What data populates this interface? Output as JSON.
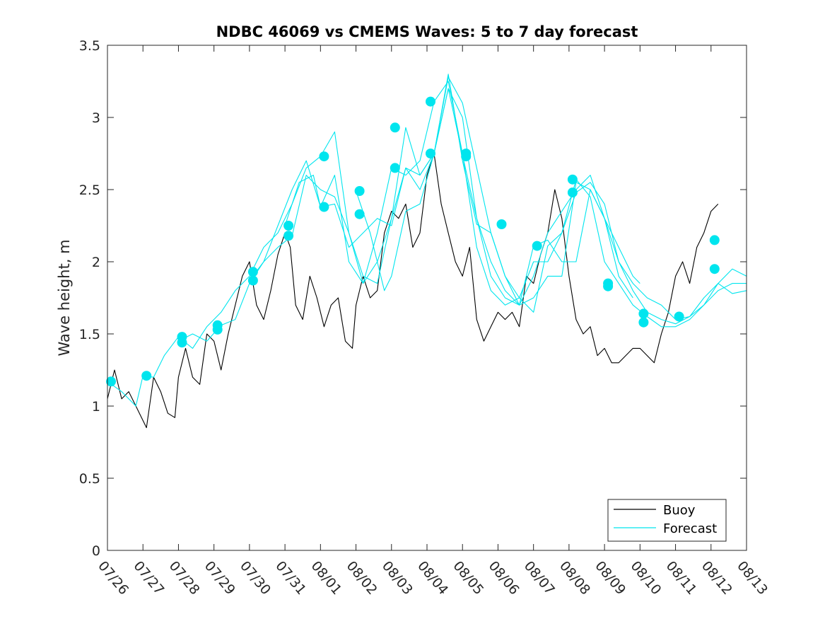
{
  "chart_data": {
    "type": "line",
    "title": "NDBC 46069 vs CMEMS Waves: 5 to 7 day forecast",
    "xlabel": "",
    "ylabel": "Wave height, m",
    "x_ticks": [
      "07/26",
      "07/27",
      "07/28",
      "07/29",
      "07/30",
      "07/31",
      "08/01",
      "08/02",
      "08/03",
      "08/04",
      "08/05",
      "08/06",
      "08/07",
      "08/08",
      "08/09",
      "08/10",
      "08/11",
      "08/12",
      "08/13"
    ],
    "xlim_days": [
      0,
      18
    ],
    "ylim": [
      0,
      3.5
    ],
    "y_ticks": [
      "0",
      "0.5",
      "1",
      "1.5",
      "2",
      "2.5",
      "3",
      "3.5"
    ],
    "grid": false,
    "legend_position": "bottom-right",
    "colors": {
      "buoy": "#000000",
      "forecast": "#00e5ee",
      "axis": "#262626"
    },
    "legend": [
      {
        "label": "Buoy",
        "color": "#000000"
      },
      {
        "label": "Forecast",
        "color": "#00e5ee"
      }
    ],
    "series": [
      {
        "name": "Buoy",
        "x": [
          0,
          0.2,
          0.4,
          0.6,
          0.8,
          1.0,
          1.1,
          1.3,
          1.5,
          1.7,
          1.9,
          2.0,
          2.2,
          2.4,
          2.6,
          2.8,
          3.0,
          3.2,
          3.4,
          3.6,
          3.8,
          4.0,
          4.2,
          4.4,
          4.6,
          4.8,
          5.0,
          5.15,
          5.3,
          5.5,
          5.7,
          5.9,
          6.1,
          6.3,
          6.5,
          6.7,
          6.9,
          7.0,
          7.2,
          7.4,
          7.6,
          7.8,
          8.0,
          8.2,
          8.4,
          8.6,
          8.8,
          9.0,
          9.2,
          9.4,
          9.6,
          9.8,
          10.0,
          10.2,
          10.4,
          10.6,
          10.8,
          11.0,
          11.2,
          11.4,
          11.6,
          11.8,
          12.0,
          12.2,
          12.4,
          12.6,
          12.8,
          13.0,
          13.2,
          13.4,
          13.6,
          13.8,
          14.0,
          14.2,
          14.4,
          14.6,
          14.8,
          15.0,
          15.2,
          15.4,
          15.6,
          15.8,
          16.0,
          16.2,
          16.4,
          16.6,
          16.8,
          17.0,
          17.2
        ],
        "values": [
          1.05,
          1.25,
          1.05,
          1.1,
          1.0,
          0.9,
          0.85,
          1.2,
          1.1,
          0.95,
          0.92,
          1.2,
          1.4,
          1.2,
          1.15,
          1.5,
          1.45,
          1.25,
          1.5,
          1.7,
          1.9,
          2.0,
          1.7,
          1.6,
          1.8,
          2.05,
          2.2,
          2.1,
          1.7,
          1.6,
          1.9,
          1.75,
          1.55,
          1.7,
          1.75,
          1.45,
          1.4,
          1.7,
          1.9,
          1.75,
          1.8,
          2.2,
          2.35,
          2.3,
          2.4,
          2.1,
          2.2,
          2.6,
          2.75,
          2.4,
          2.2,
          2.0,
          1.9,
          2.1,
          1.6,
          1.45,
          1.55,
          1.65,
          1.6,
          1.65,
          1.55,
          1.9,
          1.85,
          2.05,
          2.2,
          2.5,
          2.3,
          1.9,
          1.6,
          1.5,
          1.55,
          1.35,
          1.4,
          1.3,
          1.3,
          1.35,
          1.4,
          1.4,
          1.35,
          1.3,
          1.5,
          1.65,
          1.9,
          2.0,
          1.85,
          2.1,
          2.2,
          2.35,
          2.4
        ]
      },
      {
        "name": "Forecast",
        "x": [
          0,
          0.4,
          0.8,
          1.0,
          1.3,
          1.6,
          2.0,
          2.4,
          2.8,
          3.2,
          3.6,
          4.0,
          4.4,
          4.8,
          5.2,
          5.6,
          6.0,
          6.4,
          6.8,
          7.2,
          7.6,
          8.0,
          8.4,
          8.8,
          9.2,
          9.6,
          10.0,
          10.4,
          10.8,
          11.2,
          11.6,
          12.0,
          12.4,
          12.8,
          13.2,
          13.6,
          14.0,
          14.4,
          14.8,
          15.2,
          15.6,
          16.0,
          16.4,
          16.8,
          17.2,
          17.6,
          18.0
        ],
        "values": [
          1.17,
          1.1,
          1.0,
          1.21,
          1.2,
          1.35,
          1.48,
          1.4,
          1.55,
          1.65,
          1.8,
          1.9,
          2.1,
          2.2,
          2.4,
          2.65,
          2.73,
          2.9,
          2.2,
          1.85,
          2.0,
          2.3,
          2.65,
          2.6,
          2.75,
          3.2,
          3.0,
          2.3,
          1.9,
          1.75,
          1.7,
          1.9,
          2.2,
          2.35,
          2.5,
          2.6,
          2.3,
          2.0,
          1.85,
          1.75,
          1.7,
          1.6,
          1.62,
          1.7,
          1.85,
          1.95,
          1.9
        ]
      },
      {
        "name": "Forecast",
        "x": [
          2.0,
          2.4,
          2.8,
          3.2,
          3.6,
          4.0,
          4.4,
          4.8,
          5.2,
          5.6,
          6.0,
          6.4,
          6.8,
          7.2,
          7.6,
          8.0,
          8.4,
          8.8,
          9.2,
          9.6,
          10.0,
          10.4,
          10.8,
          11.2,
          11.6,
          12.0,
          12.4,
          12.8,
          13.2,
          13.6,
          14.0,
          14.4,
          14.8,
          15.2,
          15.6,
          16.0,
          16.4,
          16.8,
          17.2,
          17.6,
          18.0
        ],
        "values": [
          1.45,
          1.5,
          1.45,
          1.56,
          1.6,
          1.85,
          2.0,
          2.25,
          2.5,
          2.7,
          2.38,
          2.6,
          2.0,
          1.85,
          2.2,
          2.65,
          2.6,
          2.7,
          3.11,
          3.25,
          2.75,
          2.1,
          1.8,
          1.7,
          1.75,
          2.0,
          2.0,
          2.2,
          2.48,
          2.55,
          2.4,
          2.0,
          1.8,
          1.65,
          1.6,
          1.57,
          1.62,
          1.75,
          1.85,
          1.78,
          1.8
        ]
      },
      {
        "name": "Forecast",
        "x": [
          4.0,
          4.4,
          4.8,
          5.2,
          5.6,
          6.0,
          6.4,
          6.8,
          7.2,
          7.6,
          8.0,
          8.4,
          8.8,
          9.2,
          9.6,
          10.0,
          10.4,
          10.8,
          11.2,
          11.6,
          12.0,
          12.4,
          12.8,
          13.2,
          13.6,
          14.0,
          14.4,
          14.8,
          15.2,
          15.6,
          16.0,
          16.4,
          16.8,
          17.2,
          17.6,
          18.0
        ],
        "values": [
          1.87,
          2.0,
          2.1,
          2.18,
          2.6,
          2.5,
          2.45,
          2.2,
          1.9,
          1.85,
          2.3,
          2.93,
          2.6,
          2.75,
          3.28,
          3.1,
          2.65,
          2.2,
          1.9,
          1.75,
          1.65,
          2.11,
          2.2,
          2.57,
          2.45,
          2.0,
          1.85,
          1.7,
          1.62,
          1.55,
          1.55,
          1.6,
          1.7,
          1.8,
          1.85,
          1.85
        ]
      },
      {
        "name": "Forecast",
        "x": [
          5.0,
          5.4,
          5.8,
          6.0,
          6.4,
          6.8,
          7.2,
          7.6,
          8.0,
          8.4,
          8.8,
          9.2,
          9.6,
          10.0,
          10.4,
          10.8,
          11.2,
          11.6,
          12.0,
          12.4,
          12.8,
          13.2,
          13.6,
          14.0,
          14.4,
          14.8,
          15.0
        ],
        "values": [
          2.25,
          2.55,
          2.6,
          2.38,
          2.4,
          2.1,
          2.2,
          2.3,
          2.25,
          2.65,
          2.5,
          2.75,
          3.2,
          2.74,
          2.3,
          2.0,
          1.8,
          1.7,
          1.75,
          1.9,
          1.9,
          2.55,
          2.5,
          2.3,
          2.1,
          1.9,
          1.85
        ]
      },
      {
        "name": "Forecast",
        "x": [
          7.0,
          7.4,
          7.8,
          8.0,
          8.4,
          8.8,
          9.2,
          9.6,
          10.0,
          10.4,
          10.8,
          11.2,
          11.6,
          12.0,
          12.4,
          12.8,
          13.2,
          13.6,
          14.0,
          14.4,
          14.8
        ],
        "values": [
          2.49,
          2.2,
          1.8,
          1.9,
          2.35,
          2.4,
          2.75,
          3.3,
          2.7,
          2.26,
          2.2,
          1.9,
          1.7,
          2.11,
          2.15,
          2.0,
          2.0,
          2.5,
          2.3,
          1.9,
          1.75
        ]
      }
    ],
    "markers": {
      "x": [
        0.1,
        1.1,
        2.1,
        2.1,
        3.1,
        3.1,
        4.1,
        4.1,
        5.1,
        5.1,
        6.1,
        6.1,
        7.1,
        7.1,
        8.1,
        8.1,
        9.1,
        9.1,
        10.1,
        10.1,
        11.1,
        12.1,
        13.1,
        13.1,
        14.1,
        14.1,
        15.1,
        15.1,
        16.1,
        17.1,
        17.1
      ],
      "values": [
        1.17,
        1.21,
        1.48,
        1.44,
        1.56,
        1.53,
        1.93,
        1.87,
        2.25,
        2.18,
        2.73,
        2.38,
        2.49,
        2.33,
        2.93,
        2.65,
        3.11,
        2.75,
        2.75,
        2.73,
        2.26,
        2.11,
        2.57,
        2.48,
        1.85,
        1.83,
        1.64,
        1.58,
        1.62,
        2.15,
        1.95
      ]
    }
  }
}
